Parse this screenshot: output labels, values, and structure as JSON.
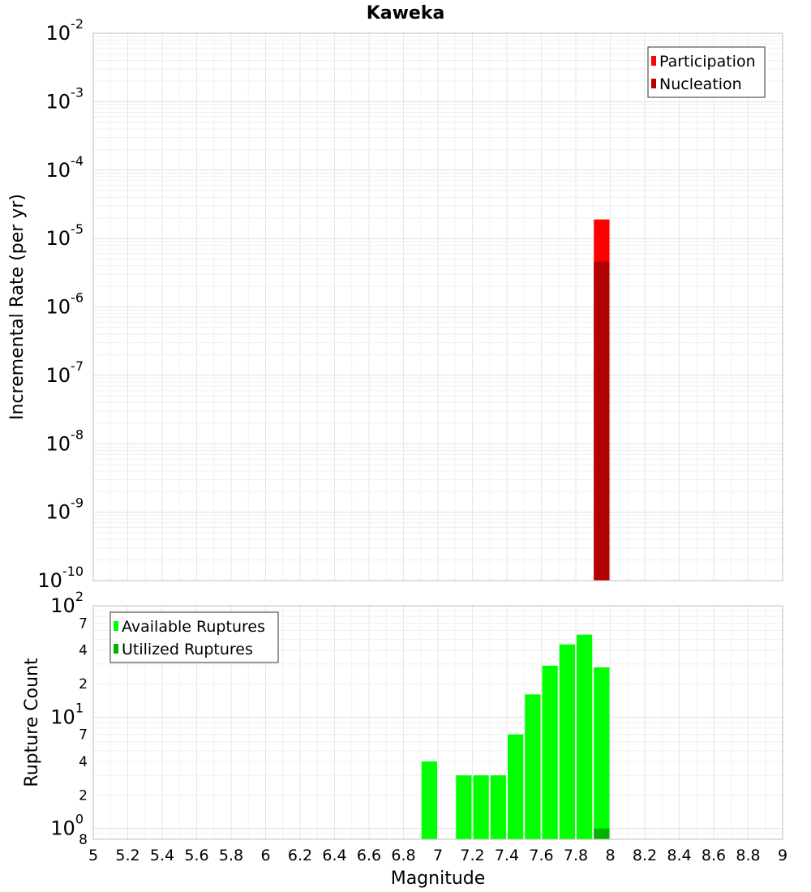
{
  "chart_data": [
    {
      "type": "bar",
      "title": "Kaweka",
      "ylabel": "Incremental Rate (per yr)",
      "xlabel": "",
      "yscale": "log",
      "ylim": [
        1e-10,
        0.01
      ],
      "xlim": [
        5,
        9
      ],
      "bin_width": 0.1,
      "y_major_ticks": [
        {
          "base": "10",
          "exp": "-10",
          "value": 1e-10
        },
        {
          "base": "10",
          "exp": "-9",
          "value": 1e-09
        },
        {
          "base": "10",
          "exp": "-8",
          "value": 1e-08
        },
        {
          "base": "10",
          "exp": "-7",
          "value": 1e-07
        },
        {
          "base": "10",
          "exp": "-6",
          "value": 1e-06
        },
        {
          "base": "10",
          "exp": "-5",
          "value": 1e-05
        },
        {
          "base": "10",
          "exp": "-4",
          "value": 0.0001
        },
        {
          "base": "10",
          "exp": "-3",
          "value": 0.001
        },
        {
          "base": "10",
          "exp": "-2",
          "value": 0.01
        }
      ],
      "legend": {
        "position": "top-right"
      },
      "series": [
        {
          "name": "Participation",
          "color": "#ff0000",
          "x": [
            7.95
          ],
          "values": [
            1.9e-05
          ]
        },
        {
          "name": "Nucleation",
          "color": "#b30000",
          "x": [
            7.95
          ],
          "values": [
            4.6e-06
          ]
        }
      ],
      "grid": true
    },
    {
      "type": "bar",
      "title": "",
      "ylabel": "Rupture Count",
      "xlabel": "Magnitude",
      "yscale": "log",
      "ylim": [
        0.8,
        100
      ],
      "xlim": [
        5,
        9
      ],
      "bin_width": 0.1,
      "y_major_ticks": [
        {
          "base": "10",
          "exp": "0",
          "value": 1
        },
        {
          "base": "10",
          "exp": "1",
          "value": 10
        },
        {
          "base": "10",
          "exp": "2",
          "value": 100
        }
      ],
      "y_minor_ticks": [
        {
          "label": "8",
          "value": 0.8
        },
        {
          "label": "2",
          "value": 2
        },
        {
          "label": "4",
          "value": 4
        },
        {
          "label": "7",
          "value": 7
        },
        {
          "label": "2",
          "value": 20
        },
        {
          "label": "4",
          "value": 40
        },
        {
          "label": "7",
          "value": 70
        }
      ],
      "x_ticks": [
        "5",
        "5.2",
        "5.4",
        "5.6",
        "5.8",
        "6",
        "6.2",
        "6.4",
        "6.6",
        "6.8",
        "7",
        "7.2",
        "7.4",
        "7.6",
        "7.8",
        "8",
        "8.2",
        "8.4",
        "8.6",
        "8.8",
        "9"
      ],
      "legend": {
        "position": "top-left"
      },
      "series": [
        {
          "name": "Available Ruptures",
          "color": "#00ff00",
          "x": [
            6.95,
            7.15,
            7.25,
            7.35,
            7.45,
            7.55,
            7.65,
            7.75,
            7.85,
            7.95
          ],
          "values": [
            4,
            3,
            3,
            3,
            7,
            16,
            29,
            45,
            55,
            28
          ]
        },
        {
          "name": "Utilized Ruptures",
          "color": "#00b300",
          "x": [
            7.95
          ],
          "values": [
            1
          ]
        }
      ],
      "grid": true
    }
  ]
}
